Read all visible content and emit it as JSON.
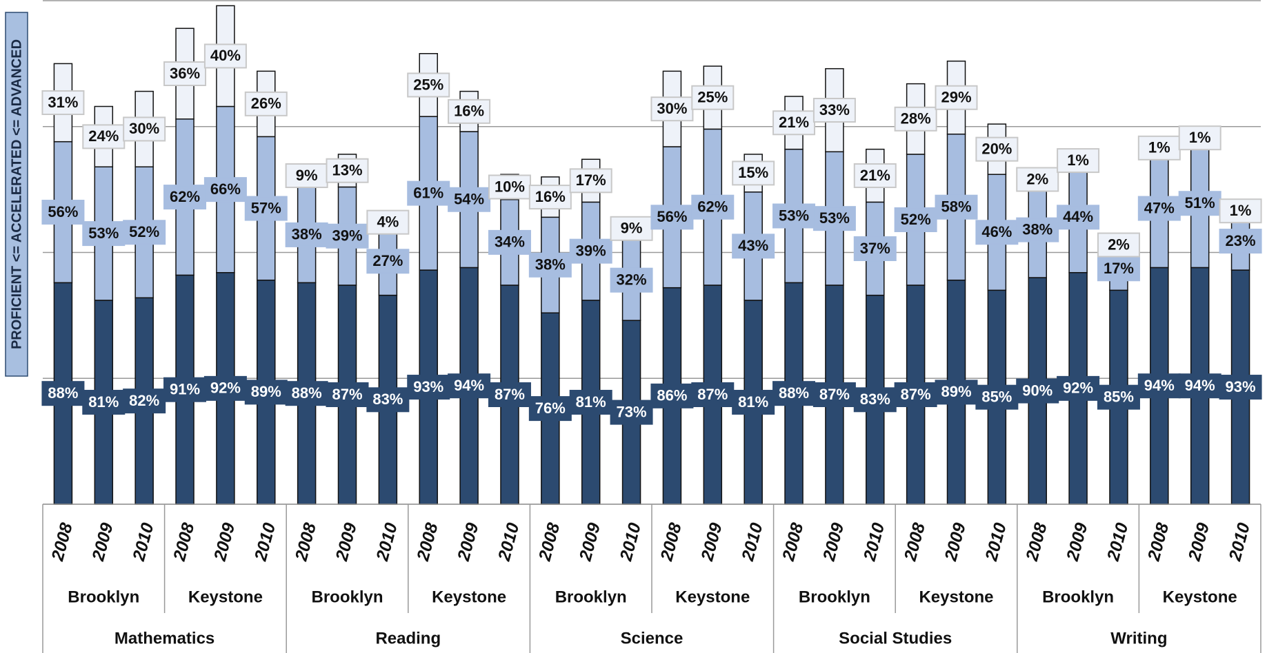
{
  "chart_data": {
    "type": "stacked_bar",
    "ylabel": "PROFICIENT <= ACCELERATED <= ADVANCED",
    "categories": [
      "2008",
      "2009",
      "2010",
      "2008",
      "2009",
      "2010",
      "2008",
      "2009",
      "2010",
      "2008",
      "2009",
      "2010",
      "2008",
      "2009",
      "2010",
      "2008",
      "2009",
      "2010",
      "2008",
      "2009",
      "2010",
      "2008",
      "2009",
      "2010",
      "2008",
      "2009",
      "2010",
      "2008",
      "2009",
      "2010"
    ],
    "school_groups": [
      "Brooklyn",
      "Keystone",
      "Brooklyn",
      "Keystone",
      "Brooklyn",
      "Keystone",
      "Brooklyn",
      "Keystone",
      "Brooklyn",
      "Keystone"
    ],
    "subject_groups": [
      "Mathematics",
      "Reading",
      "Science",
      "Social Studies",
      "Writing"
    ],
    "series": [
      {
        "color": "#2c4a70",
        "values": [
          88,
          81,
          82,
          91,
          92,
          89,
          88,
          87,
          83,
          93,
          94,
          87,
          76,
          81,
          73,
          86,
          87,
          81,
          88,
          87,
          83,
          87,
          89,
          85,
          90,
          92,
          85,
          94,
          94,
          93
        ],
        "value_labels": [
          "88%",
          "81%",
          "82%",
          "91%",
          "92%",
          "89%",
          "88%",
          "87%",
          "83%",
          "93%",
          "94%",
          "87%",
          "76%",
          "81%",
          "73%",
          "86%",
          "87%",
          "81%",
          "88%",
          "87%",
          "83%",
          "87%",
          "89%",
          "85%",
          "90%",
          "92%",
          "85%",
          "94%",
          "94%",
          "93%"
        ]
      },
      {
        "color": "#a7bde0",
        "values": [
          56,
          53,
          52,
          62,
          66,
          57,
          38,
          39,
          27,
          61,
          54,
          34,
          38,
          39,
          32,
          56,
          62,
          43,
          53,
          53,
          37,
          52,
          58,
          46,
          38,
          44,
          17,
          47,
          51,
          23
        ],
        "value_labels": [
          "56%",
          "53%",
          "52%",
          "62%",
          "66%",
          "57%",
          "38%",
          "39%",
          "27%",
          "61%",
          "54%",
          "34%",
          "38%",
          "39%",
          "32%",
          "56%",
          "62%",
          "43%",
          "53%",
          "53%",
          "37%",
          "52%",
          "58%",
          "46%",
          "38%",
          "44%",
          "17%",
          "47%",
          "51%",
          "23%"
        ]
      },
      {
        "color": "#eef2f9",
        "values": [
          31,
          24,
          30,
          36,
          40,
          26,
          9,
          13,
          4,
          25,
          16,
          10,
          16,
          17,
          9,
          30,
          25,
          15,
          21,
          33,
          21,
          28,
          29,
          20,
          2,
          1,
          2,
          1,
          1,
          1
        ],
        "value_labels": [
          "31%",
          "24%",
          "30%",
          "36%",
          "40%",
          "26%",
          "9%",
          "13%",
          "4%",
          "25%",
          "16%",
          "10%",
          "16%",
          "17%",
          "9%",
          "30%",
          "25%",
          "15%",
          "21%",
          "33%",
          "21%",
          "28%",
          "29%",
          "20%",
          "2%",
          "1%",
          "2%",
          "1%",
          "1%",
          "1%"
        ]
      }
    ],
    "ylim": [
      0,
      200
    ],
    "yticks": [
      0,
      50,
      100,
      150,
      200
    ],
    "grid": true
  }
}
